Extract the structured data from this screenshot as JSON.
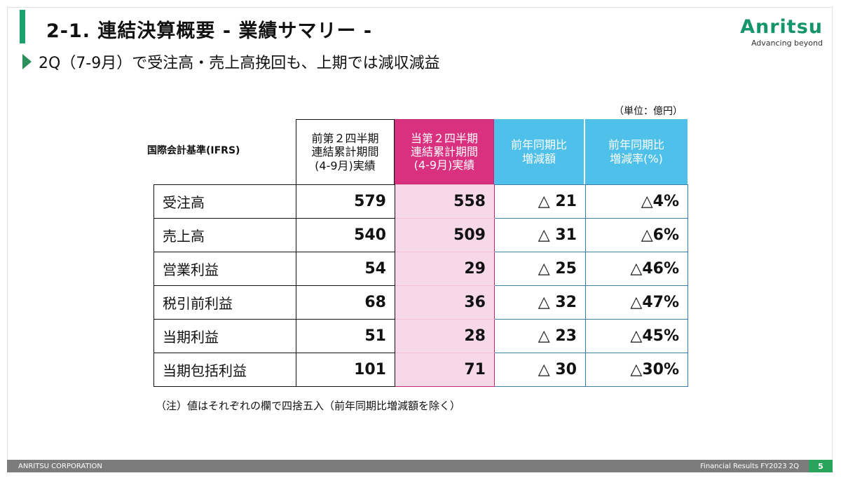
{
  "header": {
    "title": "2-1. 連結決算概要 - 業績サマリー -",
    "subtitle": "2Q（7-9月）で受注高・売上高挽回も、上期では減収減益"
  },
  "logo": {
    "name": "Anritsu",
    "tagline": "Advancing beyond",
    "color": "#14956a"
  },
  "table": {
    "unit": "（単位：億円）",
    "standard_label": "国際会計基準(IFRS)",
    "columns": [
      {
        "lines": [
          "前第２四半期",
          "連結累計期間",
          "(4-9月)実績"
        ]
      },
      {
        "lines": [
          "当第２四半期",
          "連結累計期間",
          "(4-9月)実績"
        ]
      },
      {
        "lines": [
          "前年同期比",
          "増減額"
        ]
      },
      {
        "lines": [
          "前年同期比",
          "増減率(%)"
        ]
      }
    ],
    "rows": [
      {
        "label": "受注高",
        "prev": "579",
        "curr": "558",
        "diff": "△ 21",
        "rate": "△4%"
      },
      {
        "label": "売上高",
        "prev": "540",
        "curr": "509",
        "diff": "△ 31",
        "rate": "△6%"
      },
      {
        "label": "営業利益",
        "prev": "54",
        "curr": "29",
        "diff": "△ 25",
        "rate": "△46%"
      },
      {
        "label": "税引前利益",
        "prev": "68",
        "curr": "36",
        "diff": "△ 32",
        "rate": "△47%"
      },
      {
        "label": "当期利益",
        "prev": "51",
        "curr": "28",
        "diff": "△ 23",
        "rate": "△45%"
      },
      {
        "label": "当期包括利益",
        "prev": "101",
        "curr": "71",
        "diff": "△ 30",
        "rate": "△30%"
      }
    ],
    "note": "（注）値はそれぞれの欄で四捨五入（前年同期比増減額を除く）"
  },
  "footer": {
    "company": "ANRITSU CORPORATION",
    "report": "Financial Results FY2023 2Q",
    "page": "5"
  },
  "colors": {
    "accent_green": "#1e9f6e",
    "current_period_magenta": "#d9307f",
    "current_period_fill": "#f6d8e8",
    "comparison_blue": "#4ec0ea"
  }
}
